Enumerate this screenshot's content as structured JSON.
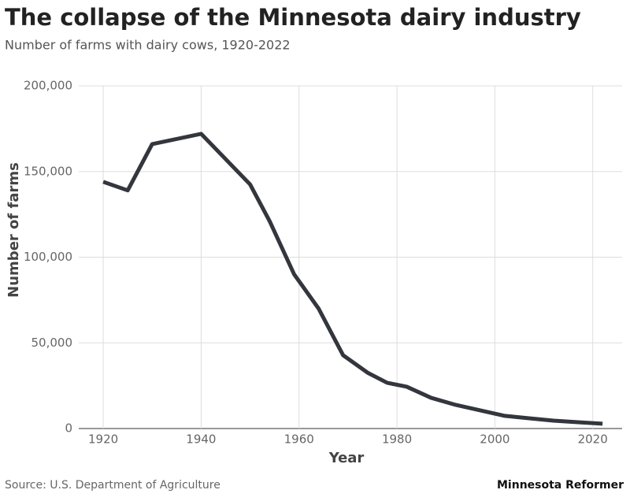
{
  "chart_data": {
    "type": "line",
    "title": "The collapse of the Minnesota dairy industry",
    "subtitle": "Number of farms with dairy cows, 1920-2022",
    "x_label": "Year",
    "y_label": "Number of farms",
    "source": "Source: U.S. Department of Agriculture",
    "credit": "Minnesota Reformer",
    "x": [
      1920,
      1925,
      1930,
      1940,
      1950,
      1954,
      1959,
      1964,
      1969,
      1974,
      1978,
      1982,
      1987,
      1992,
      1997,
      2002,
      2007,
      2012,
      2017,
      2022
    ],
    "series": [
      {
        "name": "Farms",
        "color": "#33363d",
        "values": [
          144000,
          139000,
          166000,
          172000,
          142500,
          121000,
          90000,
          70000,
          42800,
          32600,
          26700,
          24400,
          17900,
          13800,
          10600,
          7400,
          6000,
          4600,
          3700,
          2800
        ]
      }
    ],
    "xlim": [
      1915,
      2026
    ],
    "xticks": [
      1920,
      1940,
      1960,
      1980,
      2000,
      2020
    ],
    "ylim": [
      0,
      200000
    ],
    "yticks": [
      0,
      {
        "value": 50000,
        "label": "50,000"
      },
      {
        "value": 100000,
        "label": "100,000"
      },
      {
        "value": 150000,
        "label": "150,000"
      },
      {
        "value": 200000,
        "label": "200,000"
      }
    ],
    "grid": true
  }
}
